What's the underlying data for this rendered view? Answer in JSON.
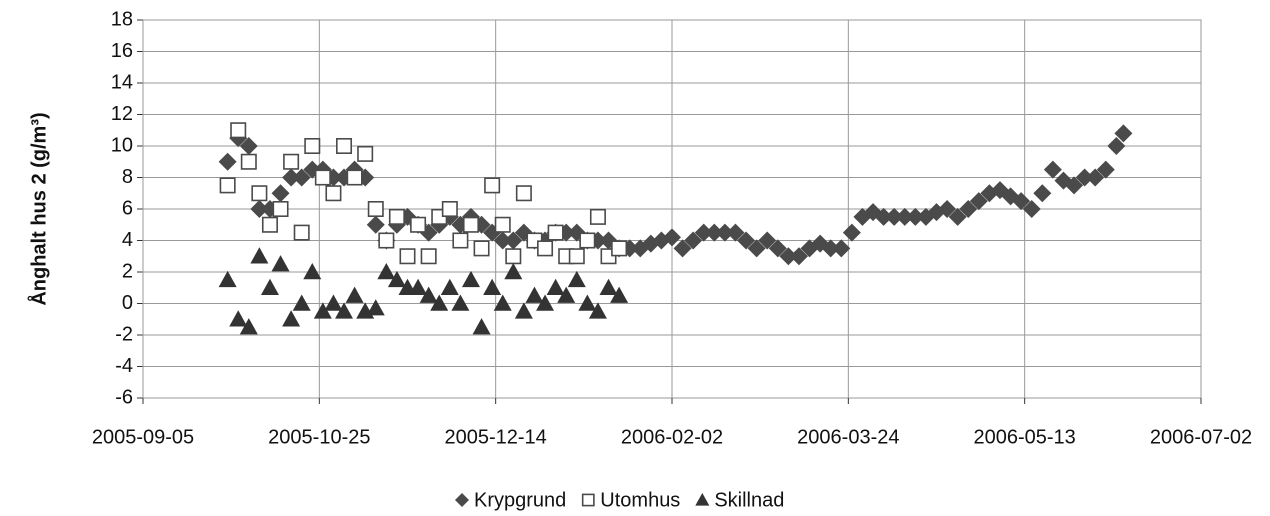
{
  "chart_data": {
    "type": "scatter",
    "y_label": "Ånghalt hus 2 (g/m³)",
    "xlim": [
      "2005-09-05",
      "2006-07-02"
    ],
    "xticks": [
      "2005-09-05",
      "2005-10-25",
      "2005-12-14",
      "2006-02-02",
      "2006-03-24",
      "2006-05-13",
      "2006-07-02"
    ],
    "ylim": [
      -6,
      18
    ],
    "yticks": [
      -6,
      -4,
      -2,
      0,
      2,
      4,
      6,
      8,
      10,
      12,
      14,
      16,
      18
    ],
    "grid": true,
    "legend": "bottom",
    "series": [
      {
        "name": "Krypgrund",
        "marker": "diamond",
        "color": "#4a4a4a",
        "x": [
          "2005-09-29",
          "2005-10-02",
          "2005-10-05",
          "2005-10-08",
          "2005-10-11",
          "2005-10-14",
          "2005-10-17",
          "2005-10-20",
          "2005-10-23",
          "2005-10-26",
          "2005-10-29",
          "2005-11-01",
          "2005-11-04",
          "2005-11-07",
          "2005-11-10",
          "2005-11-13",
          "2005-11-16",
          "2005-11-19",
          "2005-11-22",
          "2005-11-25",
          "2005-11-28",
          "2005-12-01",
          "2005-12-04",
          "2005-12-07",
          "2005-12-10",
          "2005-12-13",
          "2005-12-16",
          "2005-12-19",
          "2005-12-22",
          "2005-12-25",
          "2005-12-28",
          "2005-12-31",
          "2006-01-03",
          "2006-01-06",
          "2006-01-09",
          "2006-01-12",
          "2006-01-15",
          "2006-01-18",
          "2006-01-21",
          "2006-01-24",
          "2006-01-27",
          "2006-01-30",
          "2006-02-02",
          "2006-02-05",
          "2006-02-08",
          "2006-02-11",
          "2006-02-14",
          "2006-02-17",
          "2006-02-20",
          "2006-02-23",
          "2006-02-26",
          "2006-03-01",
          "2006-03-04",
          "2006-03-07",
          "2006-03-10",
          "2006-03-13",
          "2006-03-16",
          "2006-03-19",
          "2006-03-22",
          "2006-03-25",
          "2006-03-28",
          "2006-03-31",
          "2006-04-03",
          "2006-04-06",
          "2006-04-09",
          "2006-04-12",
          "2006-04-15",
          "2006-04-18",
          "2006-04-21",
          "2006-04-24",
          "2006-04-27",
          "2006-04-30",
          "2006-05-03",
          "2006-05-06",
          "2006-05-09",
          "2006-05-12",
          "2006-05-15",
          "2006-05-18",
          "2006-05-21",
          "2006-05-24",
          "2006-05-27",
          "2006-05-30",
          "2006-06-02",
          "2006-06-05",
          "2006-06-08",
          "2006-06-10"
        ],
        "values": [
          9,
          10.5,
          10,
          6,
          6,
          7,
          8,
          8,
          8.5,
          8.5,
          8,
          8,
          8.5,
          8,
          5,
          4,
          5,
          5.5,
          5,
          4.5,
          5,
          5.5,
          5,
          5.5,
          5,
          4.5,
          4,
          4,
          4.5,
          4,
          4,
          4.5,
          4.5,
          4.5,
          4,
          4,
          4,
          3.5,
          3.5,
          3.5,
          3.8,
          4,
          4.2,
          3.5,
          4,
          4.5,
          4.5,
          4.5,
          4.5,
          4,
          3.5,
          4,
          3.5,
          3,
          3,
          3.5,
          3.8,
          3.5,
          3.5,
          4.5,
          5.5,
          5.8,
          5.5,
          5.5,
          5.5,
          5.5,
          5.5,
          5.8,
          6,
          5.5,
          6,
          6.5,
          7,
          7.2,
          6.8,
          6.5,
          6,
          7,
          8.5,
          7.8,
          7.5,
          8,
          8,
          8.5,
          10,
          10.8
        ]
      },
      {
        "name": "Utomhus",
        "marker": "square",
        "color": "#4a4a4a",
        "x": [
          "2005-09-29",
          "2005-10-02",
          "2005-10-05",
          "2005-10-08",
          "2005-10-11",
          "2005-10-14",
          "2005-10-17",
          "2005-10-20",
          "2005-10-23",
          "2005-10-26",
          "2005-10-29",
          "2005-11-01",
          "2005-11-04",
          "2005-11-07",
          "2005-11-10",
          "2005-11-13",
          "2005-11-16",
          "2005-11-19",
          "2005-11-22",
          "2005-11-25",
          "2005-11-28",
          "2005-12-01",
          "2005-12-04",
          "2005-12-07",
          "2005-12-10",
          "2005-12-13",
          "2005-12-16",
          "2005-12-19",
          "2005-12-22",
          "2005-12-25",
          "2005-12-28",
          "2005-12-31",
          "2006-01-03",
          "2006-01-06",
          "2006-01-09",
          "2006-01-12",
          "2006-01-15",
          "2006-01-18"
        ],
        "values": [
          7.5,
          11,
          9,
          7,
          5,
          6,
          9,
          4.5,
          10,
          8,
          7,
          10,
          8,
          9.5,
          6,
          4,
          5.5,
          3,
          5,
          3,
          5.5,
          6,
          4,
          5,
          3.5,
          7.5,
          5,
          3,
          7,
          4,
          3.5,
          4.5,
          3,
          3,
          4,
          5.5,
          3,
          3.5
        ]
      },
      {
        "name": "Skillnad",
        "marker": "triangle",
        "color": "#333333",
        "x": [
          "2005-09-29",
          "2005-10-02",
          "2005-10-05",
          "2005-10-08",
          "2005-10-11",
          "2005-10-14",
          "2005-10-17",
          "2005-10-20",
          "2005-10-23",
          "2005-10-26",
          "2005-10-29",
          "2005-11-01",
          "2005-11-04",
          "2005-11-07",
          "2005-11-10",
          "2005-11-13",
          "2005-11-16",
          "2005-11-19",
          "2005-11-22",
          "2005-11-25",
          "2005-11-28",
          "2005-12-01",
          "2005-12-04",
          "2005-12-07",
          "2005-12-10",
          "2005-12-13",
          "2005-12-16",
          "2005-12-19",
          "2005-12-22",
          "2005-12-25",
          "2005-12-28",
          "2005-12-31",
          "2006-01-03",
          "2006-01-06",
          "2006-01-09",
          "2006-01-12",
          "2006-01-15",
          "2006-01-18"
        ],
        "values": [
          1.5,
          -1,
          -1.5,
          3,
          1,
          2.5,
          -1,
          0,
          2,
          -0.5,
          0,
          -0.5,
          0.5,
          -0.5,
          -0.3,
          2,
          1.5,
          1,
          1,
          0.5,
          0,
          1,
          0,
          1.5,
          -1.5,
          1,
          0,
          2,
          -0.5,
          0.5,
          0,
          1,
          0.5,
          1.5,
          0,
          -0.5,
          1,
          0.5
        ]
      }
    ]
  }
}
